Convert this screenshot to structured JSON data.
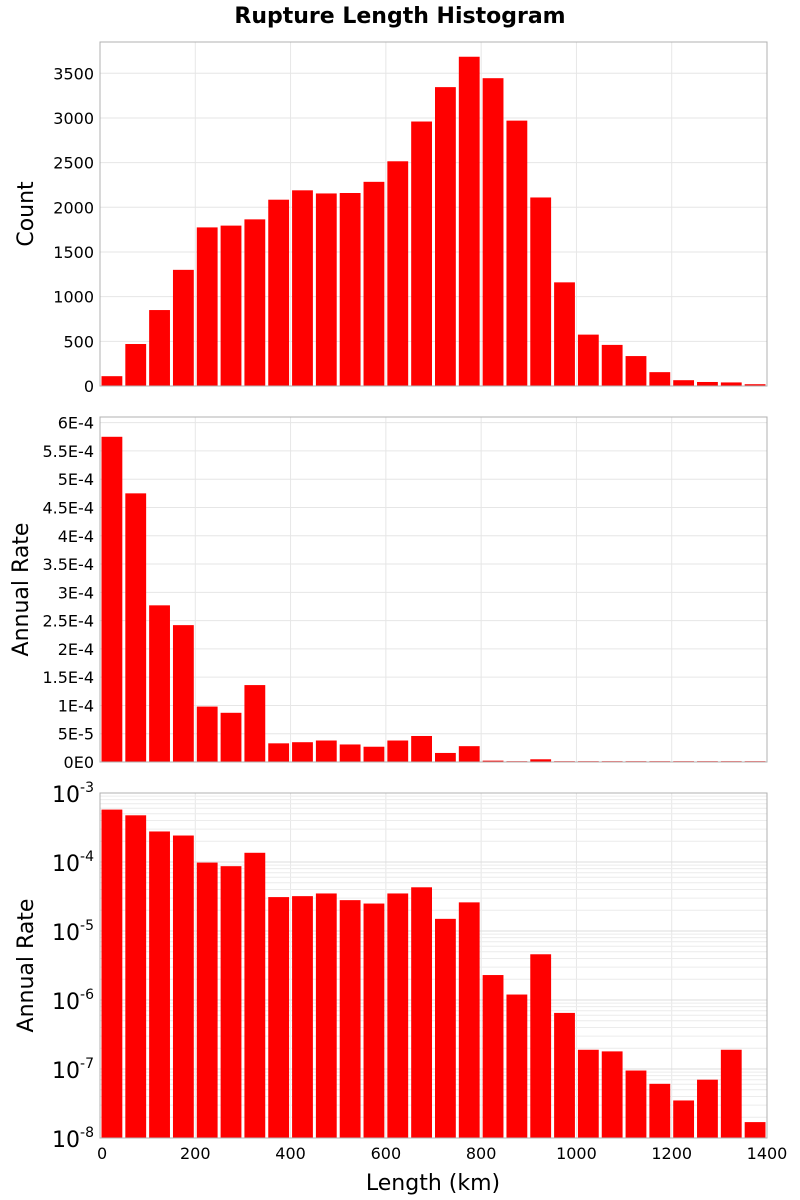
{
  "chart_data": {
    "title": "Rupture Length Histogram",
    "type": "bar",
    "x": {
      "label": "Length (km)",
      "range": [
        0,
        1400
      ],
      "ticks": [
        0,
        200,
        400,
        600,
        800,
        1000,
        1200,
        1400
      ],
      "tick_labels": [
        "0",
        "200",
        "400",
        "600",
        "800",
        "1000",
        "1200",
        "1400"
      ]
    },
    "bin_width": 50,
    "bin_centers": [
      25,
      75,
      125,
      175,
      225,
      275,
      325,
      375,
      425,
      475,
      525,
      575,
      625,
      675,
      725,
      775,
      825,
      875,
      925,
      975,
      1025,
      1075,
      1125,
      1175,
      1225,
      1275,
      1325,
      1375
    ],
    "bar_color": "#ff0000",
    "grid": true,
    "panels": [
      {
        "id": "count",
        "ylabel": "Count",
        "scale": "linear",
        "ylim": [
          0,
          3850
        ],
        "y_ticks": [
          0,
          500,
          1000,
          1500,
          2000,
          2500,
          3000,
          3500
        ],
        "y_tick_labels": [
          "0",
          "500",
          "1000",
          "1500",
          "2000",
          "2500",
          "3000",
          "3500"
        ],
        "values": [
          110,
          470,
          850,
          1300,
          1775,
          1795,
          1865,
          2085,
          2190,
          2155,
          2160,
          2285,
          2515,
          2960,
          3345,
          3685,
          3445,
          2970,
          2110,
          1160,
          575,
          460,
          335,
          155,
          65,
          45,
          40,
          20
        ]
      },
      {
        "id": "rate-linear",
        "ylabel": "Annual Rate",
        "scale": "linear",
        "ylim": [
          0,
          0.00061
        ],
        "y_ticks": [
          0,
          5e-05,
          0.0001,
          0.00015,
          0.0002,
          0.00025,
          0.0003,
          0.00035,
          0.0004,
          0.00045,
          0.0005,
          0.00055,
          0.0006
        ],
        "y_tick_labels": [
          "0E0",
          "5E-5",
          "1E-4",
          "1.5E-4",
          "2E-4",
          "2.5E-4",
          "3E-4",
          "3.5E-4",
          "4E-4",
          "4.5E-4",
          "5E-4",
          "5.5E-4",
          "6E-4"
        ],
        "values": [
          0.000575,
          0.000475,
          0.000277,
          0.000242,
          9.8e-05,
          8.7e-05,
          0.000136,
          3.3e-05,
          3.5e-05,
          3.8e-05,
          3.1e-05,
          2.7e-05,
          3.8e-05,
          4.6e-05,
          1.6e-05,
          2.8e-05,
          2.4e-06,
          1.2e-06,
          4.8e-06,
          7e-07,
          2e-07,
          1.8e-07,
          1e-07,
          6e-08,
          3e-08,
          7e-08,
          2e-07,
          2e-08
        ]
      },
      {
        "id": "rate-log",
        "ylabel": "Annual Rate",
        "scale": "log",
        "ylim": [
          1e-08,
          0.001
        ],
        "y_ticks": [
          1e-08,
          1e-07,
          1e-06,
          1e-05,
          0.0001,
          0.001
        ],
        "y_tick_labels": [
          {
            "base": "10",
            "exp": "-8"
          },
          {
            "base": "10",
            "exp": "-7"
          },
          {
            "base": "10",
            "exp": "-6"
          },
          {
            "base": "10",
            "exp": "-5"
          },
          {
            "base": "10",
            "exp": "-4"
          },
          {
            "base": "10",
            "exp": "-3"
          }
        ],
        "values": [
          0.000575,
          0.000475,
          0.000277,
          0.000242,
          9.8e-05,
          8.7e-05,
          0.000136,
          3.1e-05,
          3.2e-05,
          3.5e-05,
          2.8e-05,
          2.5e-05,
          3.5e-05,
          4.3e-05,
          1.5e-05,
          2.6e-05,
          2.3e-06,
          1.2e-06,
          4.6e-06,
          6.5e-07,
          1.9e-07,
          1.8e-07,
          9.5e-08,
          6.1e-08,
          3.5e-08,
          7e-08,
          1.9e-07,
          1.7e-08
        ]
      }
    ]
  }
}
